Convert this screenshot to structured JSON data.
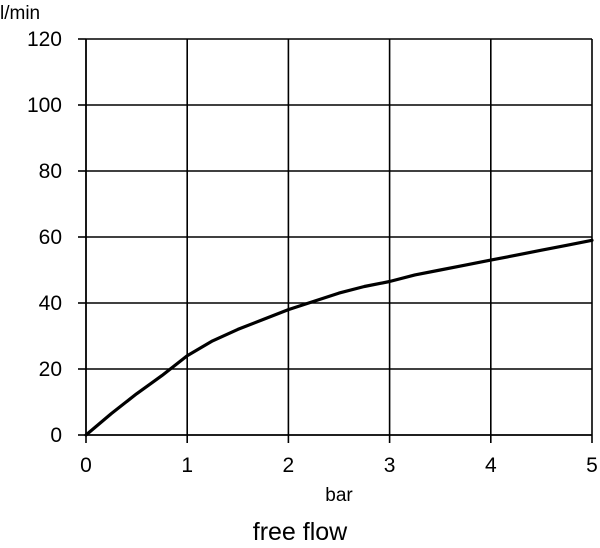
{
  "chart_data": {
    "type": "line",
    "title": "",
    "caption": "free flow",
    "xlabel": "bar",
    "ylabel": "l/min",
    "xlim": [
      0,
      5
    ],
    "ylim": [
      0,
      120
    ],
    "x_ticks": [
      0,
      1,
      2,
      3,
      4,
      5
    ],
    "y_ticks": [
      0,
      20,
      40,
      60,
      80,
      100,
      120
    ],
    "grid": true,
    "legend": "none",
    "line_color": "#000000",
    "series": [
      {
        "x": [
          0,
          0.25,
          0.5,
          0.75,
          1.0,
          1.25,
          1.5,
          1.75,
          2.0,
          2.25,
          2.5,
          2.75,
          3.0,
          3.25,
          3.5,
          3.75,
          4.0,
          4.25,
          4.5,
          4.75,
          5.0
        ],
        "y": [
          0,
          6.5,
          12.5,
          18.0,
          24.0,
          28.5,
          32.0,
          35.0,
          38.0,
          40.5,
          43.0,
          45.0,
          46.5,
          48.5,
          50.0,
          51.5,
          53.0,
          54.5,
          56.0,
          57.5,
          59.0
        ]
      }
    ]
  }
}
